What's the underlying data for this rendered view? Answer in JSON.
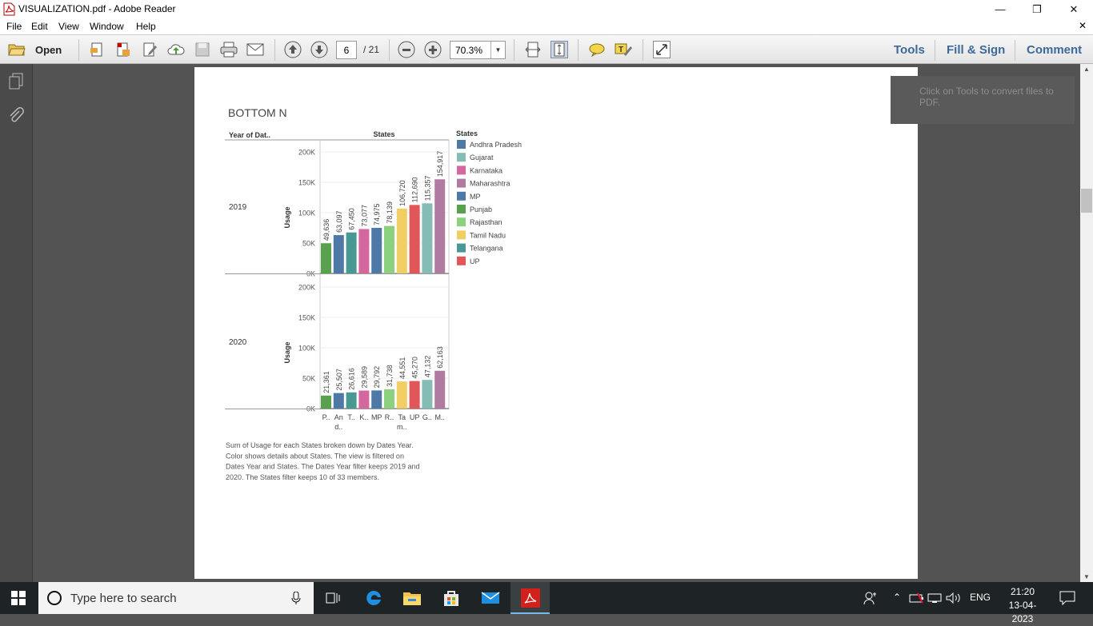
{
  "window": {
    "title": "VISUALIZATION.pdf - Adobe Reader",
    "minimize": "—",
    "restore": "❐",
    "close": "✕"
  },
  "menu": {
    "items": [
      "File",
      "Edit",
      "View",
      "Window",
      "Help"
    ],
    "close_doc": "✕"
  },
  "toolbar": {
    "open_label": "Open",
    "page_current": "6",
    "page_total": "/ 21",
    "zoom": "70.3%",
    "tools": "Tools",
    "fill_sign": "Fill & Sign",
    "comment": "Comment"
  },
  "tooltip": {
    "text": "Click on Tools to convert files to PDF."
  },
  "chart_data": {
    "type": "bar",
    "title": "BOTTOM N",
    "header_left": "Year of Dat..",
    "header_states": "States",
    "ylabel": "Usage",
    "ylim": [
      0,
      200000
    ],
    "yticks": [
      "200K",
      "150K",
      "100K",
      "50K",
      "0K"
    ],
    "legend_title": "States",
    "legend": [
      {
        "name": "Andhra Pradesh",
        "color": "#4e79a7"
      },
      {
        "name": "Gujarat",
        "color": "#86bcb6"
      },
      {
        "name": "Karnataka",
        "color": "#d4679e"
      },
      {
        "name": "Maharashtra",
        "color": "#b07aa1"
      },
      {
        "name": "MP",
        "color": "#4e79a7"
      },
      {
        "name": "Punjab",
        "color": "#59a14f"
      },
      {
        "name": "Rajasthan",
        "color": "#8cd17d"
      },
      {
        "name": "Tamil Nadu",
        "color": "#f1ce63"
      },
      {
        "name": "Telangana",
        "color": "#499894"
      },
      {
        "name": "UP",
        "color": "#e15759"
      }
    ],
    "x_labels": [
      [
        "P.."
      ],
      [
        "An",
        "d.."
      ],
      [
        "T.."
      ],
      [
        "K.."
      ],
      [
        "MP"
      ],
      [
        "R.."
      ],
      [
        "Ta",
        "m.."
      ],
      [
        "UP"
      ],
      [
        "G.."
      ],
      [
        "M.."
      ]
    ],
    "panels": [
      {
        "year": "2019",
        "bars": [
          {
            "value": 49636,
            "label": "49,636",
            "color": "#59a14f"
          },
          {
            "value": 63097,
            "label": "63,097",
            "color": "#4e79a7"
          },
          {
            "value": 67450,
            "label": "67,450",
            "color": "#499894"
          },
          {
            "value": 73077,
            "label": "73,077",
            "color": "#d4679e"
          },
          {
            "value": 74975,
            "label": "74,975",
            "color": "#4e79a7"
          },
          {
            "value": 78139,
            "label": "78,139",
            "color": "#8cd17d"
          },
          {
            "value": 106720,
            "label": "106,720",
            "color": "#f1ce63"
          },
          {
            "value": 112690,
            "label": "112,690",
            "color": "#e15759"
          },
          {
            "value": 115357,
            "label": "115,357",
            "color": "#86bcb6"
          },
          {
            "value": 154917,
            "label": "154,917",
            "color": "#b07aa1"
          }
        ]
      },
      {
        "year": "2020",
        "bars": [
          {
            "value": 21361,
            "label": "21,361",
            "color": "#59a14f"
          },
          {
            "value": 25507,
            "label": "25,507",
            "color": "#4e79a7"
          },
          {
            "value": 26616,
            "label": "26,616",
            "color": "#499894"
          },
          {
            "value": 29589,
            "label": "29,589",
            "color": "#d4679e"
          },
          {
            "value": 29792,
            "label": "29,792",
            "color": "#4e79a7"
          },
          {
            "value": 31738,
            "label": "31,738",
            "color": "#8cd17d"
          },
          {
            "value": 44551,
            "label": "44,551",
            "color": "#f1ce63"
          },
          {
            "value": 45270,
            "label": "45,270",
            "color": "#e15759"
          },
          {
            "value": 47132,
            "label": "47,132",
            "color": "#86bcb6"
          },
          {
            "value": 62163,
            "label": "62,163",
            "color": "#b07aa1"
          }
        ]
      }
    ],
    "caption": [
      "Sum of Usage for each States broken down by Dates Year.",
      "Color shows details about States. The view is filtered on",
      "Dates Year and States. The Dates Year filter keeps 2019 and",
      "2020. The States filter keeps 10 of 33 members."
    ]
  },
  "taskbar": {
    "search_placeholder": "Type here to search",
    "language": "ENG",
    "time": "21:20",
    "date": "13-04-2023"
  }
}
